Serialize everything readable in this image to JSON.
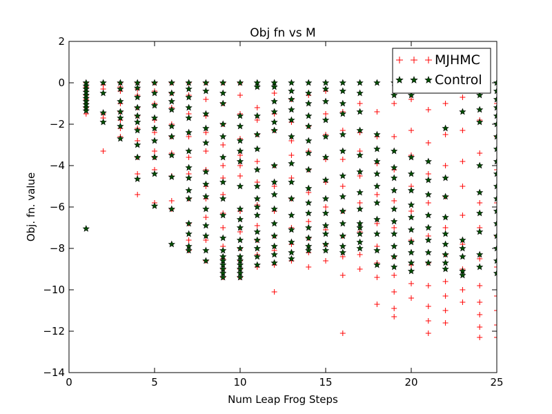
{
  "chart_data": {
    "type": "scatter",
    "title": "Obj fn vs M",
    "xlabel": "Num Leap Frog Steps",
    "ylabel": "Obj. fn. value",
    "xlim": [
      0,
      25
    ],
    "ylim": [
      -14,
      2
    ],
    "xticks": [
      0,
      5,
      10,
      15,
      20,
      25
    ],
    "yticks": [
      2,
      0,
      -2,
      -4,
      -6,
      -8,
      -10,
      -12,
      -14
    ],
    "ytick_labels": [
      "2",
      "0",
      "−2",
      "−4",
      "−6",
      "−8",
      "−10",
      "−12",
      "−14"
    ],
    "legend_position": "top-right",
    "colors": {
      "mjhmc": "#ff0000",
      "control": "#005000",
      "control_edge": "#000000"
    },
    "series": [
      {
        "name": "MJHMC",
        "marker": "+",
        "points": [
          {
            "x": 1,
            "values": [
              0,
              -0.2,
              -0.4,
              -0.6,
              -0.8,
              -1.0,
              -1.2,
              -1.5
            ]
          },
          {
            "x": 2,
            "values": [
              -0.1,
              -0.3,
              -1.5,
              -1.7,
              -3.3
            ]
          },
          {
            "x": 3,
            "values": [
              0,
              -0.2,
              -0.4,
              -1.0,
              -1.4,
              -1.8,
              -2.2,
              -2.6
            ]
          },
          {
            "x": 4,
            "values": [
              0,
              -0.3,
              -0.6,
              -1.2,
              -1.6,
              -2.2,
              -2.8,
              -3.6,
              -4.4,
              -5.4
            ]
          },
          {
            "x": 5,
            "values": [
              0,
              -0.4,
              -1.0,
              -1.8,
              -2.4,
              -3.3,
              -3.6,
              -4.2,
              -5.8
            ]
          },
          {
            "x": 6,
            "values": [
              0,
              -0.5,
              -1.2,
              -2.0,
              -2.6,
              -3.4,
              -4.5,
              -5.7,
              -6.1
            ]
          },
          {
            "x": 7,
            "values": [
              0,
              -0.6,
              -1.5,
              -2.6,
              -3.6,
              -4.4,
              -5.6,
              -6.8,
              -7.6,
              -8.1
            ]
          },
          {
            "x": 8,
            "values": [
              0,
              -0.8,
              -1.6,
              -2.4,
              -3.3,
              -4.2,
              -5.0,
              -5.6,
              -6.5,
              -7.6,
              -8.6
            ]
          },
          {
            "x": 9,
            "values": [
              0,
              -1.0,
              -2.0,
              -3.0,
              -4.0,
              -4.6,
              -5.4,
              -6.3,
              -7.0,
              -7.9,
              -8.5,
              -9.0,
              -9.4
            ]
          },
          {
            "x": 10,
            "values": [
              0,
              -0.6,
              -1.5,
              -2.7,
              -3.5,
              -4.0,
              -4.5,
              -6.2,
              -7.2,
              -8.0,
              -8.6,
              -9.0,
              -9.4
            ]
          },
          {
            "x": 11,
            "values": [
              -1.2,
              -1.8,
              -2.5,
              -3.8,
              -4.8,
              -5.9,
              -6.9,
              -7.6,
              -8.3,
              -8.9
            ]
          },
          {
            "x": 12,
            "values": [
              -0.5,
              -1.5,
              -2.3,
              -4.0,
              -5.0,
              -6.2,
              -7.4,
              -8.1,
              -8.8,
              -10.1
            ]
          },
          {
            "x": 13,
            "values": [
              -0.8,
              -1.9,
              -2.8,
              -3.5,
              -4.6,
              -5.6,
              -7.0,
              -7.8,
              -8.6
            ]
          },
          {
            "x": 14,
            "values": [
              -0.6,
              -2.1,
              -3.3,
              -4.2,
              -5.3,
              -6.7,
              -7.5,
              -8.2,
              -8.9
            ]
          },
          {
            "x": 15,
            "values": [
              -0.4,
              -1.5,
              -2.5,
              -3.7,
              -4.8,
              -6.0,
              -7.1,
              -7.8,
              -8.6
            ]
          },
          {
            "x": 16,
            "values": [
              -1.4,
              -2.3,
              -3.7,
              -5.0,
              -6.2,
              -7.4,
              -8.4,
              -9.3,
              -12.1
            ]
          },
          {
            "x": 17,
            "values": [
              -1.0,
              -2.4,
              -3.3,
              -4.5,
              -5.8,
              -7.2,
              -8.3,
              -9.0
            ]
          },
          {
            "x": 18,
            "values": [
              -1.4,
              -2.6,
              -3.9,
              -5.4,
              -6.8,
              -7.9,
              -8.7,
              -9.4,
              -10.7
            ]
          },
          {
            "x": 19,
            "values": [
              -1.0,
              -2.6,
              -4.2,
              -5.7,
              -7.0,
              -8.4,
              -9.3,
              -10.1,
              -10.9,
              -11.3
            ]
          },
          {
            "x": 20,
            "values": [
              -0.8,
              -2.3,
              -3.5,
              -5.0,
              -6.2,
              -7.6,
              -8.8,
              -9.7,
              -10.4
            ]
          },
          {
            "x": 21,
            "values": [
              -1.3,
              -2.9,
              -4.4,
              -5.8,
              -7.4,
              -8.7,
              -9.8,
              -10.8,
              -11.5,
              -12.1
            ]
          },
          {
            "x": 22,
            "values": [
              -1.0,
              -2.5,
              -4.0,
              -5.5,
              -7.0,
              -8.3,
              -9.6,
              -10.3,
              -11.0,
              -11.6
            ]
          },
          {
            "x": 23,
            "values": [
              -0.7,
              -2.3,
              -3.8,
              -5.0,
              -6.4,
              -7.8,
              -9.0,
              -10.0,
              -10.6
            ]
          },
          {
            "x": 24,
            "values": [
              -1.8,
              -3.4,
              -5.8,
              -7.0,
              -8.5,
              -9.8,
              -10.6,
              -11.2,
              -11.8,
              -12.3
            ]
          },
          {
            "x": 25,
            "values": [
              -1.0,
              -2.6,
              -4.2,
              -5.8,
              -7.4,
              -8.9,
              -10.3,
              -11.0,
              -11.7,
              -12.3
            ]
          }
        ]
      },
      {
        "name": "Control",
        "marker": "*",
        "points": [
          {
            "x": 1,
            "values": [
              0,
              -0.15,
              -0.3,
              -0.45,
              -0.6,
              -0.75,
              -0.9,
              -1.05,
              -1.2,
              -1.35,
              -7.05
            ]
          },
          {
            "x": 2,
            "values": [
              0,
              -0.5,
              -1.45,
              -1.9
            ]
          },
          {
            "x": 3,
            "values": [
              0,
              -0.3,
              -0.9,
              -1.4,
              -1.7,
              -2.1,
              -2.7
            ]
          },
          {
            "x": 4,
            "values": [
              0,
              -0.25,
              -0.7,
              -1.2,
              -1.6,
              -1.9,
              -2.3,
              -3.0,
              -3.6,
              -4.65
            ]
          },
          {
            "x": 5,
            "values": [
              0,
              -0.5,
              -1.1,
              -1.7,
              -2.2,
              -2.8,
              -3.6,
              -4.4,
              -5.95
            ]
          },
          {
            "x": 6,
            "values": [
              0,
              -0.5,
              -0.9,
              -1.3,
              -2.1,
              -2.6,
              -3.5,
              -4.55,
              -6.1,
              -7.8
            ]
          },
          {
            "x": 7,
            "values": [
              0,
              -0.3,
              -0.7,
              -1.2,
              -1.7,
              -2.4,
              -3.3,
              -4.1,
              -4.6,
              -5.2,
              -5.6,
              -6.8,
              -7.3,
              -7.9,
              -8.1
            ]
          },
          {
            "x": 8,
            "values": [
              0,
              -0.4,
              -1.5,
              -2.2,
              -2.9,
              -4.3,
              -4.9,
              -5.5,
              -6.1,
              -6.9,
              -7.4,
              -8.1,
              -8.6
            ]
          },
          {
            "x": 9,
            "values": [
              0,
              -0.5,
              -1.0,
              -2.0,
              -2.6,
              -3.6,
              -4.8,
              -5.6,
              -6.4,
              -7.5,
              -8.1,
              -8.4,
              -8.6,
              -8.8,
              -9.0,
              -9.2,
              -9.4
            ]
          },
          {
            "x": 10,
            "values": [
              0,
              -1.6,
              -2.1,
              -2.8,
              -3.3,
              -3.8,
              -5.0,
              -6.1,
              -6.6,
              -7.0,
              -7.6,
              -8.0,
              -8.4,
              -8.6,
              -8.8,
              -9.0,
              -9.2,
              -9.4
            ]
          },
          {
            "x": 11,
            "values": [
              0,
              -0.2,
              -1.6,
              -2.5,
              -3.2,
              -4.2,
              -5.0,
              -5.6,
              -6.0,
              -6.4,
              -7.2,
              -7.6,
              -8.0,
              -8.4,
              -8.8
            ]
          },
          {
            "x": 12,
            "values": [
              0,
              -0.2,
              -0.9,
              -1.4,
              -1.9,
              -2.3,
              -4.0,
              -4.8,
              -5.4,
              -6.1,
              -6.8,
              -7.4,
              -7.9,
              -8.3,
              -8.7
            ]
          },
          {
            "x": 13,
            "values": [
              0,
              -0.4,
              -0.8,
              -1.3,
              -1.8,
              -2.6,
              -3.9,
              -4.8,
              -5.6,
              -6.4,
              -7.1,
              -7.7,
              -8.2,
              -8.5
            ]
          },
          {
            "x": 14,
            "values": [
              0,
              -0.5,
              -1.0,
              -1.6,
              -2.1,
              -2.8,
              -3.4,
              -4.2,
              -5.1,
              -5.8,
              -6.3,
              -7.0,
              -7.5,
              -7.9,
              -8.1
            ]
          },
          {
            "x": 15,
            "values": [
              0,
              -0.3,
              -0.9,
              -1.8,
              -2.6,
              -3.6,
              -4.7,
              -5.6,
              -6.3,
              -6.9,
              -7.3,
              -7.8,
              -8.1
            ]
          },
          {
            "x": 16,
            "values": [
              0,
              -0.4,
              -1.0,
              -1.5,
              -2.5,
              -3.3,
              -4.5,
              -5.5,
              -6.2,
              -6.8,
              -7.4,
              -7.9,
              -8.2
            ]
          },
          {
            "x": 17,
            "values": [
              0,
              -0.5,
              -1.4,
              -2.3,
              -3.5,
              -4.3,
              -5.3,
              -6.1,
              -6.8,
              -7.0,
              -7.3,
              -7.7,
              -8.0
            ]
          },
          {
            "x": 18,
            "values": [
              0,
              -2.5,
              -3.2,
              -3.8,
              -4.4,
              -5.0,
              -5.8,
              -6.6,
              -7.3,
              -8.1,
              -8.8
            ]
          },
          {
            "x": 19,
            "values": [
              0,
              -0.6,
              -3.3,
              -4.1,
              -4.6,
              -5.2,
              -6.1,
              -6.7,
              -7.3,
              -7.9,
              -8.4,
              -8.9
            ]
          },
          {
            "x": 20,
            "values": [
              0,
              -0.6,
              -3.6,
              -4.4,
              -5.2,
              -5.9,
              -6.5,
              -7.1,
              -7.7,
              -8.2,
              -8.7,
              -9.1
            ]
          },
          {
            "x": 21,
            "values": [
              -0.3,
              -3.8,
              -4.7,
              -5.4,
              -6.4,
              -7.0,
              -7.6,
              -8.2,
              -8.7
            ]
          },
          {
            "x": 22,
            "values": [
              0,
              -2.2,
              -4.6,
              -5.5,
              -6.5,
              -7.3,
              -7.8,
              -8.3,
              -8.7,
              -9.0
            ]
          },
          {
            "x": 23,
            "values": [
              0,
              -1.4,
              -7.6,
              -8.0,
              -8.4,
              -9.1,
              -9.3
            ]
          },
          {
            "x": 24,
            "values": [
              0,
              -0.6,
              -1.3,
              -1.9,
              -4.0,
              -5.3,
              -6.3,
              -7.2,
              -8.3,
              -8.9
            ]
          },
          {
            "x": 25,
            "values": [
              0,
              -0.4,
              -0.8,
              -1.2,
              -1.6,
              -2.0,
              -2.6,
              -3.2,
              -3.8,
              -4.4,
              -5.0,
              -5.6,
              -6.2,
              -6.8,
              -7.4,
              -8.0,
              -8.6,
              -9.2
            ]
          }
        ]
      }
    ]
  }
}
